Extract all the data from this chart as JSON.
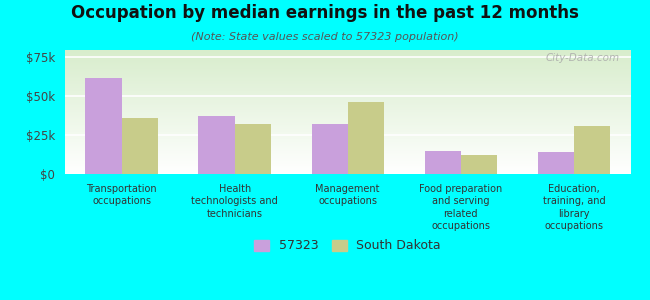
{
  "title": "Occupation by median earnings in the past 12 months",
  "subtitle": "(Note: State values scaled to 57323 population)",
  "categories": [
    "Transportation\noccupations",
    "Health\ntechnologists and\ntechnicians",
    "Management\noccupations",
    "Food preparation\nand serving\nrelated\noccupations",
    "Education,\ntraining, and\nlibrary\noccupations"
  ],
  "values_57323": [
    62000,
    37000,
    32000,
    15000,
    14000
  ],
  "values_sd": [
    36000,
    32000,
    46000,
    12000,
    31000
  ],
  "color_57323": "#c9a0dc",
  "color_sd": "#c8cc8a",
  "ylim": [
    0,
    80000
  ],
  "yticks": [
    0,
    25000,
    50000,
    75000
  ],
  "ytick_labels": [
    "$0",
    "$25k",
    "$50k",
    "$75k"
  ],
  "legend_labels": [
    "57323",
    "South Dakota"
  ],
  "background_color": "#00ffff",
  "watermark": "City-Data.com",
  "bar_width": 0.32
}
